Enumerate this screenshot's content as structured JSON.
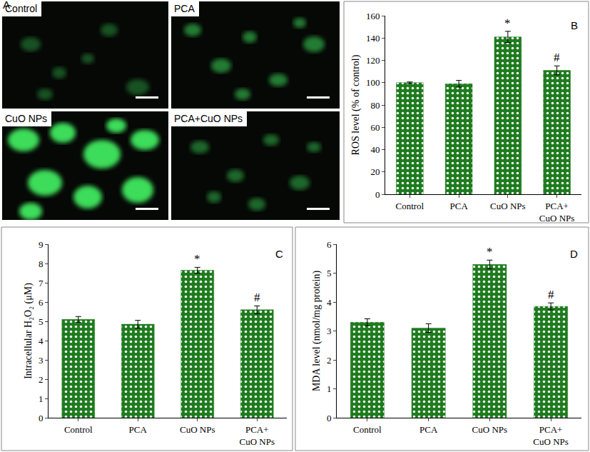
{
  "panel_a": {
    "label": "A",
    "images": [
      "Control",
      "PCA",
      "CuO NPs",
      "PCA+CuO NPs"
    ]
  },
  "chart_data": [
    {
      "type": "bar",
      "panel_label": "B",
      "categories": [
        "Control",
        "PCA",
        "CuO NPs",
        "PCA+\nCuO NPs"
      ],
      "values": [
        100,
        99,
        141,
        111
      ],
      "errors": [
        0.6,
        3,
        5,
        4
      ],
      "significance": [
        null,
        null,
        "*",
        "#"
      ],
      "color": "#1e7b1e",
      "y_label": "ROS level (% of control)",
      "ylim": [
        0,
        160
      ],
      "yticks": [
        0,
        20,
        40,
        60,
        80,
        100,
        120,
        140,
        160
      ],
      "grid": false
    },
    {
      "type": "bar",
      "panel_label": "C",
      "categories": [
        "Control",
        "PCA",
        "CuO NPs",
        "PCA+\nCuO NPs"
      ],
      "values": [
        5.1,
        4.85,
        7.65,
        5.6
      ],
      "errors": [
        0.15,
        0.2,
        0.15,
        0.2
      ],
      "significance": [
        null,
        null,
        "*",
        "#"
      ],
      "color": "#1e7b1e",
      "y_label": "Intracellular H₂O₂ (μM)",
      "ylim": [
        0,
        9
      ],
      "yticks": [
        0,
        1,
        2,
        3,
        4,
        5,
        6,
        7,
        8,
        9
      ],
      "grid": false
    },
    {
      "type": "bar",
      "panel_label": "D",
      "categories": [
        "Control",
        "PCA",
        "CuO NPs",
        "PCA+\nCuO NPs"
      ],
      "values": [
        3.3,
        3.1,
        5.3,
        3.85
      ],
      "errors": [
        0.12,
        0.15,
        0.15,
        0.12
      ],
      "significance": [
        null,
        null,
        "*",
        "#"
      ],
      "color": "#1e7b1e",
      "y_label": "MDA level (nmol/mg protein)",
      "ylim": [
        0,
        6
      ],
      "yticks": [
        0,
        1,
        2,
        3,
        4,
        5,
        6
      ],
      "grid": false
    }
  ]
}
